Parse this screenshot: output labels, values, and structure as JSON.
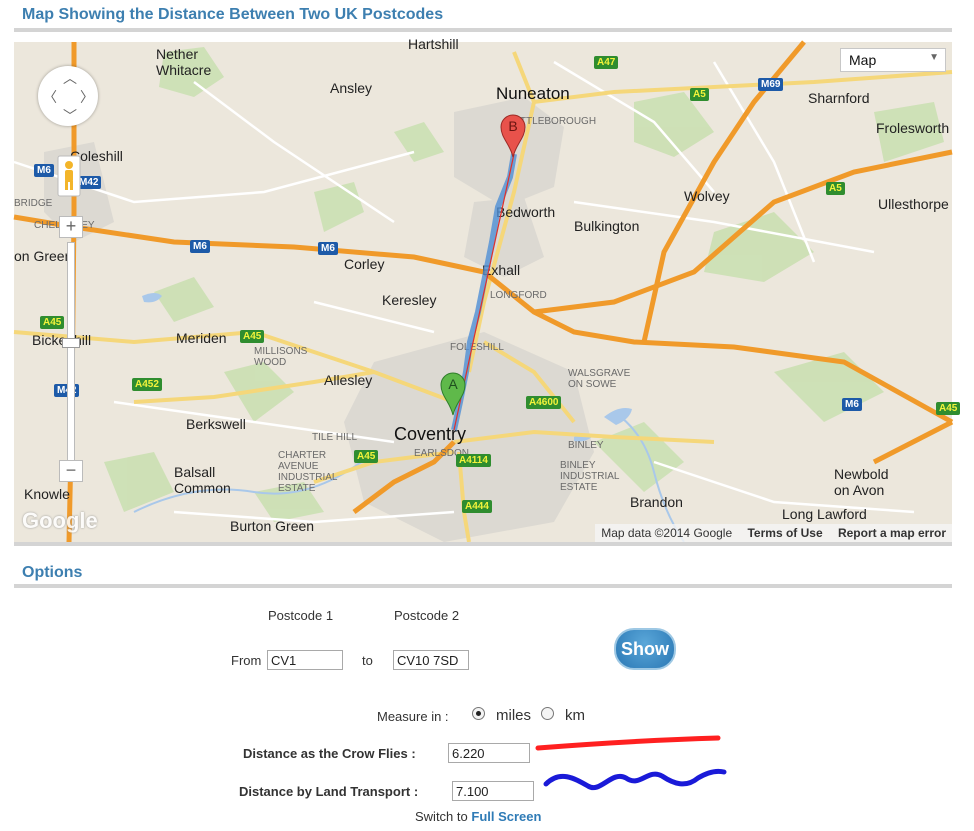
{
  "header": {
    "title": "Map Showing the Distance Between Two UK Postcodes"
  },
  "map": {
    "type_select": "Map",
    "google_logo": "Google",
    "attribution": {
      "data": "Map data ©2014 Google",
      "terms": "Terms of Use",
      "report": "Report a map error"
    },
    "markers": {
      "a": "A",
      "b": "B"
    },
    "zoom": {
      "in": "+",
      "out": "−"
    },
    "places": {
      "nether_whitacre": "Nether\nWhitacre",
      "hartshill": "Hartshill",
      "ansley": "Ansley",
      "nuneaton": "Nuneaton",
      "attleborough": "ATTLEBOROUGH",
      "sharnford": "Sharnford",
      "frolesworth": "Frolesworth",
      "coleshill": "Coleshill",
      "bridge": "BRIDGE",
      "chelmsley": "CHELMSLEY",
      "wolvey": "Wolvey",
      "ullesthorpe": "Ullesthorpe",
      "bedworth": "Bedworth",
      "bulkington": "Bulkington",
      "on_green": "on Green",
      "corley": "Corley",
      "exhall": "Exhall",
      "keresley": "Keresley",
      "longford": "LONGFORD",
      "bickenhill": "Bickenhill",
      "meriden": "Meriden",
      "millisons_wood": "MILLISONS\nWOOD",
      "foleshill": "FOLESHILL",
      "walsgrave": "WALSGRAVE\nON SOWE",
      "allesley": "Allesley",
      "berkswell": "Berkswell",
      "tile_hill": "TILE HILL",
      "coventry": "Coventry",
      "earlsdon": "EARLSDON",
      "binley": "BINLEY",
      "charter_avenue": "CHARTER\nAVENUE\nINDUSTRIAL\nESTATE",
      "binley_ind": "BINLEY\nINDUSTRIAL\nESTATE",
      "balsall_common": "Balsall\nCommon",
      "knowle": "Knowle",
      "brandon": "Brandon",
      "newbold": "Newbold\non Avon",
      "burton_green": "Burton Green",
      "long_lawford": "Long Lawford"
    },
    "shields": {
      "m6a": "M6",
      "m42a": "M42",
      "m6b": "M6",
      "m6c": "M6",
      "m42b": "M42",
      "m69": "M69",
      "a47": "A47",
      "a5a": "A5",
      "a5b": "A5",
      "a45a": "A45",
      "a45b": "A45",
      "a45c": "A45",
      "a452": "A452",
      "a4600": "A4600",
      "a4114": "A4114",
      "a444": "A444",
      "a45d": "A45",
      "m6d": "M6"
    }
  },
  "options": {
    "title": "Options",
    "postcode1_label": "Postcode 1",
    "postcode2_label": "Postcode 2",
    "from_label": "From",
    "to_label": "to",
    "from_value": "CV1",
    "to_value": "CV10 7SD",
    "show_button": "Show",
    "measure_label": "Measure in :",
    "unit_miles": "miles",
    "unit_km": "km",
    "selected_unit": "miles",
    "crow_label": "Distance as the Crow Flies :",
    "crow_value": "6.220",
    "land_label": "Distance by Land Transport :",
    "land_value": "7.100",
    "switch_prefix": "Switch to",
    "switch_link": "Full Screen"
  },
  "colors": {
    "title_blue": "#3d7fb0",
    "route_blue": "#4f8fd6",
    "crow_red": "#e0302b",
    "annotation_red": "#ff2020",
    "annotation_blue": "#1a1ad8"
  }
}
